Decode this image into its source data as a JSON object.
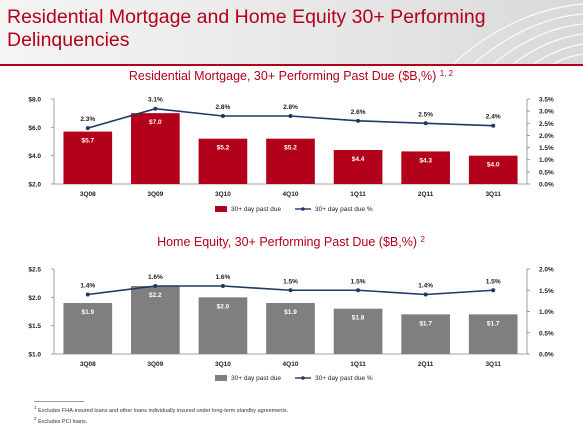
{
  "page": {
    "title": "Residential Mortgage and Home Equity 30+ Performing Delinquencies"
  },
  "colors": {
    "accent": "#b3001b",
    "mortgage_bar": "#b3001b",
    "home_equity_bar": "#7f7f7f",
    "line": "#1f3864"
  },
  "chart_data": [
    {
      "type": "bar",
      "title": "Residential Mortgage, 30+ Performing Past Due ($B,%)",
      "title_superscript": "1, 2",
      "categories": [
        "3Q08",
        "3Q09",
        "3Q10",
        "4Q10",
        "1Q11",
        "2Q11",
        "3Q11"
      ],
      "series": [
        {
          "name": "30+ day past due",
          "kind": "bar",
          "axis": "left",
          "values": [
            5.7,
            7.0,
            5.2,
            5.2,
            4.4,
            4.3,
            4.0
          ],
          "labels": [
            "$5.7",
            "$7.0",
            "$5.2",
            "$5.2",
            "$4.4",
            "$4.3",
            "$4.0"
          ]
        },
        {
          "name": "30+ day past due %",
          "kind": "line",
          "axis": "right",
          "values": [
            2.3,
            3.1,
            2.8,
            2.8,
            2.6,
            2.5,
            2.4
          ],
          "labels": [
            "2.3%",
            "3.1%",
            "2.8%",
            "2.8%",
            "2.6%",
            "2.5%",
            "2.4%"
          ]
        }
      ],
      "ylim": [
        2.0,
        8.0
      ],
      "y_ticks": [
        "$2.0",
        "$4.0",
        "$6.0",
        "$8.0"
      ],
      "y_tick_values": [
        2,
        4,
        6,
        8
      ],
      "y2lim": [
        0.0,
        3.5
      ],
      "y2_ticks": [
        "0.0%",
        "0.5%",
        "1.0%",
        "1.5%",
        "2.0%",
        "2.5%",
        "3.0%",
        "3.5%"
      ],
      "y2_tick_values": [
        0,
        0.5,
        1,
        1.5,
        2,
        2.5,
        3,
        3.5
      ],
      "legend_position": "bottom-center",
      "grid": false
    },
    {
      "type": "bar",
      "title": "Home Equity, 30+ Performing Past Due ($B,%)",
      "title_superscript": "2",
      "categories": [
        "3Q08",
        "3Q09",
        "3Q10",
        "4Q10",
        "1Q11",
        "2Q11",
        "3Q11"
      ],
      "series": [
        {
          "name": "30+ day past due",
          "kind": "bar",
          "axis": "left",
          "values": [
            1.9,
            2.2,
            2.0,
            1.9,
            1.8,
            1.7,
            1.7
          ],
          "labels": [
            "$1.9",
            "$2.2",
            "$2.0",
            "$1.9",
            "$1.8",
            "$1.7",
            "$1.7"
          ]
        },
        {
          "name": "30+ day past due %",
          "kind": "line",
          "axis": "right",
          "values": [
            1.4,
            1.6,
            1.6,
            1.5,
            1.5,
            1.4,
            1.5
          ],
          "labels": [
            "1.4%",
            "1.6%",
            "1.6%",
            "1.5%",
            "1.5%",
            "1.4%",
            "1.5%"
          ]
        }
      ],
      "ylim": [
        1.0,
        2.5
      ],
      "y_ticks": [
        "$1.0",
        "$1.5",
        "$2.0",
        "$2.5"
      ],
      "y_tick_values": [
        1.0,
        1.5,
        2.0,
        2.5
      ],
      "y2lim": [
        0.0,
        2.0
      ],
      "y2_ticks": [
        "0.0%",
        "0.5%",
        "1.0%",
        "1.5%",
        "2.0%"
      ],
      "y2_tick_values": [
        0,
        0.5,
        1,
        1.5,
        2
      ],
      "legend_position": "bottom-center",
      "grid": false
    }
  ],
  "footnotes": [
    {
      "mark": "1",
      "text": "Excludes FHA-insured loans and other loans individually insured under long-term standby agreements."
    },
    {
      "mark": "2",
      "text": "Excludes PCI loans."
    }
  ]
}
